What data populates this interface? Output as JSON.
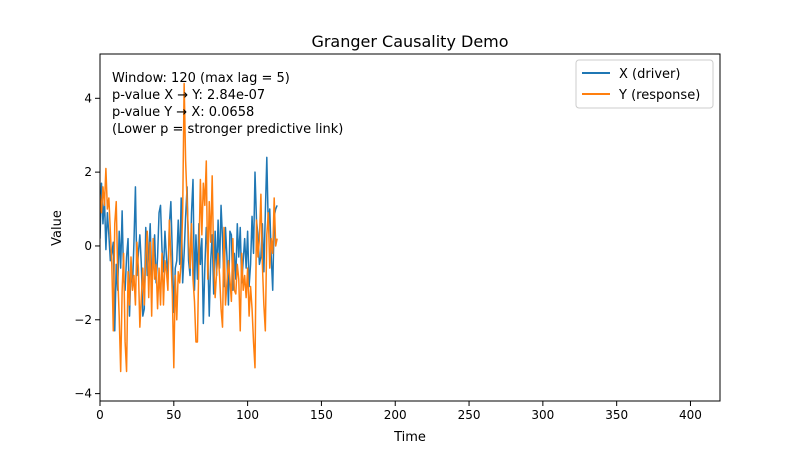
{
  "chart_data": {
    "type": "line",
    "title": "Granger Causality Demo",
    "xlabel": "Time",
    "ylabel": "Value",
    "xlim": [
      0,
      420
    ],
    "ylim": [
      -4.2,
      5.2
    ],
    "xticks": [
      0,
      50,
      100,
      150,
      200,
      250,
      300,
      350,
      400
    ],
    "yticks": [
      -4,
      -2,
      0,
      2,
      4
    ],
    "grid": false,
    "legend_position": "top-right",
    "annotation": [
      "Window: 120 (max lag = 5)",
      "p-value X → Y: 2.84e-07",
      "p-value Y → X: 0.0658",
      "(Lower p = stronger predictive link)"
    ],
    "series": [
      {
        "name": "X (driver)",
        "color": "#1f77b4",
        "x": [
          0,
          1,
          2,
          3,
          4,
          5,
          6,
          7,
          8,
          9,
          10,
          11,
          12,
          13,
          14,
          15,
          16,
          17,
          18,
          19,
          20,
          21,
          22,
          23,
          24,
          25,
          26,
          27,
          28,
          29,
          30,
          31,
          32,
          33,
          34,
          35,
          36,
          37,
          38,
          39,
          40,
          41,
          42,
          43,
          44,
          45,
          46,
          47,
          48,
          49,
          50,
          51,
          52,
          53,
          54,
          55,
          56,
          57,
          58,
          59,
          60,
          61,
          62,
          63,
          64,
          65,
          66,
          67,
          68,
          69,
          70,
          71,
          72,
          73,
          74,
          75,
          76,
          77,
          78,
          79,
          80,
          81,
          82,
          83,
          84,
          85,
          86,
          87,
          88,
          89,
          90,
          91,
          92,
          93,
          94,
          95,
          96,
          97,
          98,
          99,
          100,
          101,
          102,
          103,
          104,
          105,
          106,
          107,
          108,
          109,
          110,
          111,
          112,
          113,
          114,
          115,
          116,
          117,
          118,
          119,
          120
        ],
        "y": [
          0.2,
          1.7,
          0.6,
          1.3,
          -0.1,
          0.9,
          0.3,
          -0.4,
          -0.2,
          0.1,
          -2.3,
          -0.5,
          -1.2,
          0.4,
          -0.6,
          0.95,
          -0.9,
          -1.2,
          -0.3,
          0.2,
          -1.9,
          -0.6,
          -1.1,
          0.1,
          1.6,
          -0.8,
          -0.2,
          0.3,
          -0.5,
          -1.9,
          -1.7,
          0.5,
          -0.8,
          -0.2,
          0.6,
          -0.9,
          -0.4,
          0.3,
          -1.0,
          -0.3,
          0.9,
          1.1,
          -0.1,
          -0.7,
          0.4,
          -0.3,
          -0.9,
          0.6,
          1.2,
          -0.2,
          -1.8,
          -0.6,
          -0.4,
          0.7,
          -0.5,
          1.3,
          -1.0,
          -0.2,
          0.8,
          1.6,
          -0.4,
          -0.8,
          0.9,
          1.8,
          -1.2,
          0.3,
          -0.9,
          0.6,
          -0.5,
          0.2,
          -2.1,
          -0.6,
          0.5,
          -0.2,
          -1.9,
          -0.4,
          0.3,
          -1.3,
          0.4,
          -0.8,
          0.7,
          -0.6,
          1.1,
          0.2,
          -1.1,
          0.5,
          -0.3,
          -1.6,
          0.4,
          0.3,
          -1.2,
          -0.2,
          -0.9,
          0.6,
          -0.3,
          0.5,
          -1.0,
          -0.4,
          0.2,
          -0.6,
          0.4,
          -1.1,
          -0.5,
          0.8,
          -0.2,
          2.0,
          0.7,
          0.3,
          -0.5,
          -0.3,
          0.6,
          -0.7,
          0.9,
          2.4,
          0.5,
          1.0,
          -0.3,
          -1.2,
          0.8,
          1.0,
          1.1
        ]
      },
      {
        "name": "Y (response)",
        "color": "#ff7f0e",
        "x": [
          0,
          1,
          2,
          3,
          4,
          5,
          6,
          7,
          8,
          9,
          10,
          11,
          12,
          13,
          14,
          15,
          16,
          17,
          18,
          19,
          20,
          21,
          22,
          23,
          24,
          25,
          26,
          27,
          28,
          29,
          30,
          31,
          32,
          33,
          34,
          35,
          36,
          37,
          38,
          39,
          40,
          41,
          42,
          43,
          44,
          45,
          46,
          47,
          48,
          49,
          50,
          51,
          52,
          53,
          54,
          55,
          56,
          57,
          58,
          59,
          60,
          61,
          62,
          63,
          64,
          65,
          66,
          67,
          68,
          69,
          70,
          71,
          72,
          73,
          74,
          75,
          76,
          77,
          78,
          79,
          80,
          81,
          82,
          83,
          84,
          85,
          86,
          87,
          88,
          89,
          90,
          91,
          92,
          93,
          94,
          95,
          96,
          97,
          98,
          99,
          100,
          101,
          102,
          103,
          104,
          105,
          106,
          107,
          108,
          109,
          110,
          111,
          112,
          113,
          114,
          115,
          116,
          117,
          118,
          119,
          120
        ],
        "y": [
          1.4,
          0.9,
          1.6,
          1.1,
          2.1,
          1.0,
          1.3,
          0.4,
          -0.5,
          -2.3,
          0.6,
          1.2,
          -0.8,
          -1.9,
          -3.4,
          -1.2,
          -0.2,
          -2.6,
          -3.4,
          -0.7,
          -1.6,
          -0.3,
          -1.2,
          -0.8,
          -1.6,
          0.1,
          -0.6,
          -2.2,
          -1.4,
          -0.6,
          -1.6,
          -0.3,
          0.4,
          -1.4,
          0.1,
          -1.9,
          0.2,
          -0.9,
          -0.5,
          -1.7,
          -0.6,
          -1.6,
          -0.2,
          -1.6,
          -0.4,
          -0.7,
          -1.2,
          0.7,
          -0.3,
          -1.3,
          -3.3,
          -0.8,
          -2.0,
          -0.7,
          -1.0,
          -0.4,
          0.9,
          4.4,
          2.3,
          1.2,
          0.2,
          -0.6,
          0.6,
          -0.9,
          -1.5,
          -2.6,
          -2.6,
          -0.3,
          1.8,
          0.3,
          1.7,
          1.1,
          2.3,
          -0.9,
          1.2,
          0.1,
          1.9,
          -0.4,
          -1.4,
          -0.7,
          -0.2,
          -0.8,
          -1.7,
          -2.2,
          0.5,
          -1.6,
          -1.0,
          -0.4,
          -0.9,
          -1.5,
          0.2,
          -1.2,
          -1.3,
          -0.5,
          -0.9,
          -2.3,
          -0.2,
          -1.2,
          -0.8,
          -1.4,
          -0.6,
          -1.9,
          -1.1,
          -1.7,
          -2.6,
          -3.3,
          0.7,
          -0.3,
          0.2,
          1.4,
          -0.5,
          -1.6,
          -2.3,
          0.3,
          0.9,
          -0.6,
          0.2,
          -0.2,
          1.3,
          0.0,
          0.2
        ]
      }
    ]
  }
}
